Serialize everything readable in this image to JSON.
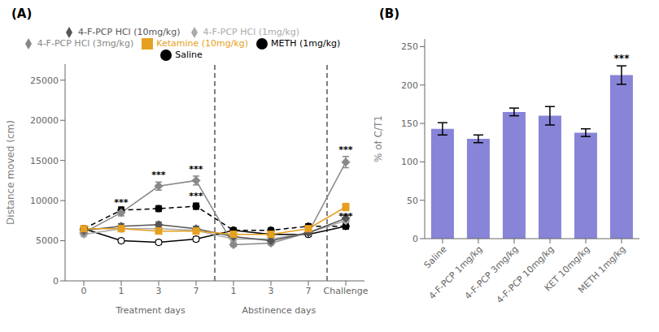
{
  "chart_data": [
    {
      "type": "line",
      "title": "(A)",
      "ylabel": "Distance moved (cm)",
      "categories": [
        "0",
        "1",
        "3",
        "7",
        "1",
        "3",
        "7",
        "Challenge"
      ],
      "x_groups": [
        {
          "label": "Treatment days",
          "first": 1,
          "last": 3
        },
        {
          "label": "Abstinence days",
          "first": 4,
          "last": 6
        }
      ],
      "series": [
        {
          "name": "Saline",
          "color": "#000000",
          "marker": "open_circle",
          "line_style": "solid",
          "values": [
            6500,
            5000,
            4800,
            5200,
            6300,
            5800,
            5800,
            6800
          ],
          "sem": [
            300,
            250,
            250,
            280,
            280,
            280,
            280,
            350
          ]
        },
        {
          "name": "METH (1mg/kg)",
          "color": "#000000",
          "marker": "circle",
          "line_style": "dashed",
          "values": [
            6500,
            8800,
            9000,
            9300,
            6300,
            6300,
            6800,
            6800
          ],
          "sem": [
            300,
            400,
            350,
            380,
            280,
            280,
            300,
            350
          ]
        },
        {
          "name": "4-F-PCP HCl (1mg/kg)",
          "color": "#aaaaaa",
          "marker": "diamond",
          "line_style": "solid",
          "values": [
            5800,
            6500,
            6500,
            6300,
            5200,
            5200,
            6000,
            7500
          ],
          "sem": [
            280,
            300,
            300,
            280,
            250,
            250,
            280,
            380
          ]
        },
        {
          "name": "4-F-PCP HCl (3mg/kg)",
          "color": "#888888",
          "marker": "diamond",
          "line_style": "solid",
          "values": [
            6000,
            8500,
            11800,
            12500,
            4500,
            4700,
            6000,
            14800
          ],
          "sem": [
            280,
            400,
            500,
            550,
            220,
            220,
            300,
            700
          ]
        },
        {
          "name": "4-F-PCP HCl (10mg/kg)",
          "color": "#555555",
          "marker": "diamond",
          "line_style": "solid",
          "values": [
            6300,
            6800,
            7000,
            6500,
            5500,
            5000,
            6000,
            7800
          ],
          "sem": [
            280,
            320,
            330,
            300,
            260,
            250,
            280,
            400
          ]
        },
        {
          "name": "Ketamine (10mg/kg)",
          "color": "#e6a020",
          "marker": "square",
          "line_style": "solid",
          "values": [
            6500,
            6500,
            6200,
            6200,
            5800,
            5800,
            6500,
            9200
          ],
          "sem": [
            300,
            300,
            280,
            280,
            270,
            270,
            300,
            450
          ]
        }
      ],
      "ylim": [
        0,
        27000
      ],
      "yticks": [
        0,
        5000,
        10000,
        15000,
        20000,
        25000
      ],
      "reference_lines": [
        {
          "x": 3.5,
          "line_style": "dashed"
        },
        {
          "x": 6.5,
          "line_style": "dashed"
        }
      ],
      "annotations": [
        {
          "text": "***",
          "x": 1,
          "series": "4-F-PCP HCl (3mg/kg)"
        },
        {
          "text": "***",
          "x": 2,
          "series": "4-F-PCP HCl (3mg/kg)"
        },
        {
          "text": "***",
          "x": 3,
          "series": "4-F-PCP HCl (3mg/kg)"
        },
        {
          "text": "***",
          "x": 3,
          "series": "METH (1mg/kg)"
        },
        {
          "text": "***",
          "x": 7,
          "series": "4-F-PCP HCl (3mg/kg)"
        },
        {
          "text": "***",
          "x": 7,
          "series": "METH (1mg/kg)"
        }
      ],
      "legend": "top",
      "grid": false
    },
    {
      "type": "bar",
      "title": "(B)",
      "ylabel": "% of C/T1",
      "categories": [
        "Saline",
        "4-F-PCP 1mg/kg",
        "4-F-PCP 3mg/kg",
        "4-F-PCP 10mg/kg",
        "KET 10mg/kg",
        "METH 1mg/kg"
      ],
      "values": [
        143,
        130,
        165,
        160,
        138,
        213
      ],
      "sem": [
        8,
        5,
        5,
        12,
        5,
        12
      ],
      "color": "#8884d8",
      "ylim": [
        0,
        260
      ],
      "yticks": [
        0,
        50,
        100,
        150,
        200,
        250
      ],
      "annotations": [
        {
          "text": "***",
          "x": 5
        }
      ],
      "grid": false
    }
  ]
}
